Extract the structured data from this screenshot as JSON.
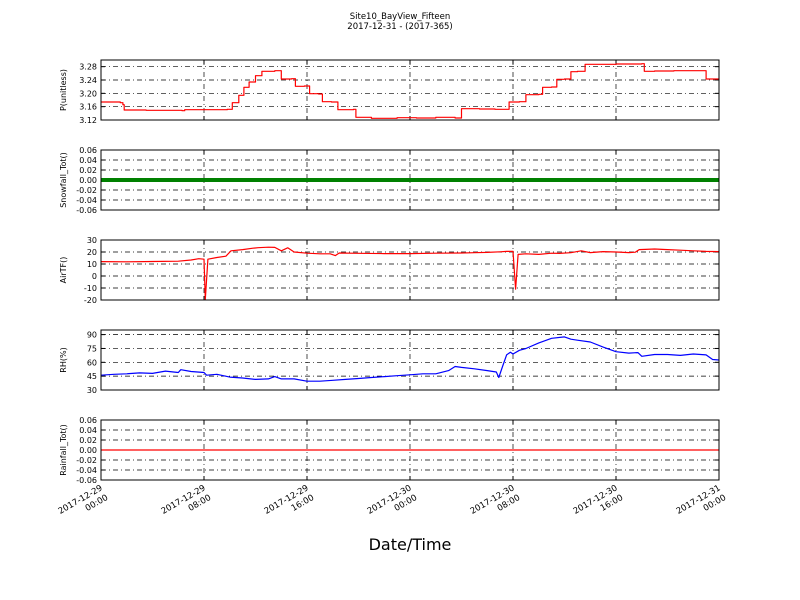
{
  "chart_data": {
    "type": "line",
    "title": "Site10_BayView_Fifteen",
    "subtitle": "2017-12-31 - (2017-365)",
    "xlabel": "Date/Time",
    "x_ticks": [
      {
        "line1": "2017-12-29",
        "line2": "00:00",
        "hour": 0
      },
      {
        "line1": "2017-12-29",
        "line2": "08:00",
        "hour": 8
      },
      {
        "line1": "2017-12-29",
        "line2": "16:00",
        "hour": 16
      },
      {
        "line1": "2017-12-30",
        "line2": "00:00",
        "hour": 24
      },
      {
        "line1": "2017-12-30",
        "line2": "08:00",
        "hour": 32
      },
      {
        "line1": "2017-12-30",
        "line2": "16:00",
        "hour": 40
      },
      {
        "line1": "2017-12-31",
        "line2": "00:00",
        "hour": 48
      }
    ],
    "grid": true,
    "panels": [
      {
        "ylabel": "P(unitless)",
        "color": "#ff0000",
        "ylim": [
          3.12,
          3.3
        ],
        "yticks": [
          "3.12",
          "3.16",
          "3.20",
          "3.24",
          "3.28"
        ],
        "series": {
          "mode": "step",
          "points": [
            [
              0,
              3.174
            ],
            [
              1.5,
              3.172
            ],
            [
              1.7,
              3.166
            ],
            [
              1.8,
              3.15
            ],
            [
              3.5,
              3.149
            ],
            [
              6.3,
              3.148
            ],
            [
              6.5,
              3.151
            ],
            [
              9.8,
              3.152
            ],
            [
              10.2,
              3.172
            ],
            [
              10.7,
              3.194
            ],
            [
              11.1,
              3.218
            ],
            [
              11.5,
              3.234
            ],
            [
              12.0,
              3.253
            ],
            [
              12.5,
              3.266
            ],
            [
              13.5,
              3.268
            ],
            [
              14.0,
              3.243
            ],
            [
              14.8,
              3.244
            ],
            [
              15.1,
              3.221
            ],
            [
              15.8,
              3.222
            ],
            [
              16.2,
              3.199
            ],
            [
              16.9,
              3.198
            ],
            [
              17.2,
              3.175
            ],
            [
              17.9,
              3.174
            ],
            [
              18.4,
              3.151
            ],
            [
              19.6,
              3.152
            ],
            [
              19.8,
              3.128
            ],
            [
              21.0,
              3.125
            ],
            [
              23.0,
              3.127
            ],
            [
              24.5,
              3.126
            ],
            [
              26.0,
              3.128
            ],
            [
              27.5,
              3.126
            ],
            [
              28.0,
              3.154
            ],
            [
              29.4,
              3.153
            ],
            [
              30.6,
              3.152
            ],
            [
              31.5,
              3.152
            ],
            [
              31.7,
              3.174
            ],
            [
              32.5,
              3.175
            ],
            [
              33.0,
              3.196
            ],
            [
              34.0,
              3.197
            ],
            [
              34.3,
              3.218
            ],
            [
              35.0,
              3.219
            ],
            [
              35.4,
              3.242
            ],
            [
              36.0,
              3.243
            ],
            [
              36.5,
              3.265
            ],
            [
              37.0,
              3.266
            ],
            [
              37.6,
              3.287
            ],
            [
              40.0,
              3.288
            ],
            [
              42.0,
              3.289
            ],
            [
              42.2,
              3.266
            ],
            [
              43.0,
              3.267
            ],
            [
              44.5,
              3.268
            ],
            [
              46.6,
              3.268
            ],
            [
              47.0,
              3.243
            ],
            [
              48.0,
              3.242
            ]
          ]
        }
      },
      {
        "ylabel": "Snowfall_Tot()",
        "color": "#008000",
        "ylim": [
          -0.06,
          0.06
        ],
        "yticks": [
          "-0.06",
          "-0.04",
          "-0.02",
          "0.00",
          "0.02",
          "0.04",
          "0.06"
        ],
        "series": {
          "mode": "constant",
          "value": 0.0,
          "style": "thick"
        }
      },
      {
        "ylabel": "AirTF()",
        "color": "#ff0000",
        "ylim": [
          -20,
          30
        ],
        "yticks": [
          "-20",
          "-10",
          "0",
          "10",
          "20",
          "30"
        ],
        "series": {
          "mode": "line",
          "points": [
            [
              0,
              12.0
            ],
            [
              2,
              11.8
            ],
            [
              4,
              12.1
            ],
            [
              6,
              12.3
            ],
            [
              7,
              13.3
            ],
            [
              7.6,
              14.4
            ],
            [
              8.0,
              14.0
            ],
            [
              8.1,
              -19.5
            ],
            [
              8.3,
              14.0
            ],
            [
              9.0,
              15.4
            ],
            [
              9.7,
              16.5
            ],
            [
              10.1,
              21.0
            ],
            [
              11.0,
              22.0
            ],
            [
              11.8,
              23.2
            ],
            [
              12.2,
              23.6
            ],
            [
              13.0,
              24.0
            ],
            [
              13.5,
              23.8
            ],
            [
              14.0,
              21.0
            ],
            [
              14.5,
              23.5
            ],
            [
              15.0,
              20.0
            ],
            [
              16.0,
              19.0
            ],
            [
              17.0,
              18.5
            ],
            [
              17.8,
              18.5
            ],
            [
              18.2,
              17.0
            ],
            [
              18.5,
              19.2
            ],
            [
              20.0,
              18.9
            ],
            [
              22.0,
              18.7
            ],
            [
              24.0,
              18.7
            ],
            [
              26.0,
              19.0
            ],
            [
              28.0,
              19.2
            ],
            [
              29.0,
              19.4
            ],
            [
              30.0,
              19.7
            ],
            [
              31.0,
              20.2
            ],
            [
              31.5,
              20.5
            ],
            [
              32.0,
              20.5
            ],
            [
              32.2,
              -11.0
            ],
            [
              32.4,
              18.0
            ],
            [
              33.0,
              18.5
            ],
            [
              34.0,
              18.0
            ],
            [
              35.0,
              19.0
            ],
            [
              35.6,
              18.8
            ],
            [
              36.5,
              19.4
            ],
            [
              37.3,
              21.0
            ],
            [
              38.0,
              19.5
            ],
            [
              39.0,
              20.3
            ],
            [
              40.0,
              20.0
            ],
            [
              41.0,
              19.5
            ],
            [
              41.5,
              19.8
            ],
            [
              41.8,
              22.0
            ],
            [
              43.0,
              22.5
            ],
            [
              44.0,
              22.0
            ],
            [
              45.0,
              21.5
            ],
            [
              46.0,
              21.0
            ],
            [
              47.0,
              20.5
            ],
            [
              48.0,
              20.3
            ]
          ]
        }
      },
      {
        "ylabel": "RH(%)",
        "color": "#0000ff",
        "ylim": [
          30,
          95
        ],
        "yticks": [
          "30",
          "45",
          "60",
          "75",
          "90"
        ],
        "series": {
          "mode": "line",
          "points": [
            [
              0,
              46.0
            ],
            [
              1,
              47.0
            ],
            [
              2,
              47.5
            ],
            [
              3,
              48.5
            ],
            [
              4,
              48.0
            ],
            [
              5,
              50.5
            ],
            [
              6,
              49.0
            ],
            [
              6.2,
              52.0
            ],
            [
              7.0,
              50.0
            ],
            [
              8.0,
              49.0
            ],
            [
              8.2,
              46.0
            ],
            [
              9.0,
              47.0
            ],
            [
              10.0,
              44.0
            ],
            [
              11.0,
              43.0
            ],
            [
              12.0,
              41.5
            ],
            [
              13.0,
              42.0
            ],
            [
              13.5,
              44.5
            ],
            [
              14.0,
              42.0
            ],
            [
              15.0,
              42.0
            ],
            [
              16.0,
              39.5
            ],
            [
              17.0,
              39.5
            ],
            [
              18.0,
              40.5
            ],
            [
              19.0,
              41.5
            ],
            [
              20.0,
              42.5
            ],
            [
              21.0,
              43.5
            ],
            [
              22.0,
              44.5
            ],
            [
              23.0,
              45.5
            ],
            [
              24.0,
              46.5
            ],
            [
              25.0,
              47.5
            ],
            [
              26.0,
              47.5
            ],
            [
              27.0,
              51.0
            ],
            [
              27.5,
              55.5
            ],
            [
              28.0,
              54.5
            ],
            [
              29.0,
              53.0
            ],
            [
              30.0,
              51.0
            ],
            [
              30.7,
              49.5
            ],
            [
              30.9,
              43.5
            ],
            [
              31.2,
              56.0
            ],
            [
              31.5,
              68.0
            ],
            [
              31.8,
              71.0
            ],
            [
              32.0,
              69.0
            ],
            [
              32.5,
              73.0
            ],
            [
              33.0,
              75.0
            ],
            [
              34.0,
              81.0
            ],
            [
              35.0,
              86.0
            ],
            [
              36.0,
              87.5
            ],
            [
              36.5,
              85.0
            ],
            [
              37.0,
              84.0
            ],
            [
              38.0,
              82.0
            ],
            [
              39.0,
              76.5
            ],
            [
              40.0,
              71.5
            ],
            [
              41.0,
              70.0
            ],
            [
              41.7,
              70.5
            ],
            [
              42.0,
              66.5
            ],
            [
              43.0,
              68.5
            ],
            [
              44.0,
              68.5
            ],
            [
              45.0,
              67.5
            ],
            [
              46.0,
              69.0
            ],
            [
              47.0,
              68.0
            ],
            [
              47.5,
              63.0
            ],
            [
              48.0,
              62.5
            ]
          ]
        }
      },
      {
        "ylabel": "Rainfall_Tot()",
        "color": "#ff0000",
        "ylim": [
          -0.06,
          0.06
        ],
        "yticks": [
          "-0.06",
          "-0.04",
          "-0.02",
          "0.00",
          "0.02",
          "0.04",
          "0.06"
        ],
        "series": {
          "mode": "constant",
          "value": 0.0,
          "style": "thin"
        }
      }
    ]
  }
}
